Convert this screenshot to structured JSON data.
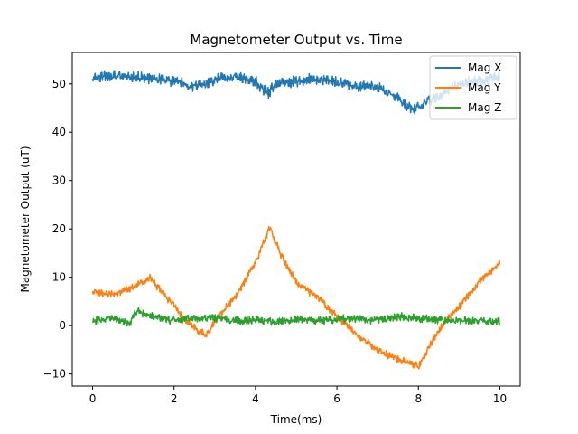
{
  "chart_data": {
    "type": "line",
    "title": "Magnetometer Output vs. Time",
    "xlabel": "Time(ms)",
    "ylabel": "Magnetometer Output (uT)",
    "xlim": [
      -0.5,
      10.5
    ],
    "ylim": [
      -12.5,
      56.5
    ],
    "xticks": [
      0,
      2,
      4,
      6,
      8,
      10
    ],
    "yticks": [
      -10,
      0,
      10,
      20,
      30,
      40,
      50
    ],
    "grid": false,
    "legend_position": "top-right",
    "series": [
      {
        "name": "Mag X",
        "color": "#1f77b4",
        "x": [
          0,
          0.5,
          1,
          1.5,
          2,
          2.5,
          2.8,
          3,
          3.5,
          4,
          4.3,
          4.5,
          5,
          5.5,
          6,
          6.5,
          7,
          7.5,
          7.9,
          8,
          8.5,
          9,
          9.5,
          10
        ],
        "y": [
          51.5,
          51.5,
          51.5,
          51,
          50.5,
          49.5,
          50,
          51,
          51.5,
          50.5,
          48,
          50,
          50.5,
          51,
          50.5,
          49.5,
          49.5,
          47,
          44.5,
          45.5,
          47.5,
          50,
          50.5,
          51.5
        ],
        "noise": 1.3
      },
      {
        "name": "Mag Y",
        "color": "#ff7f0e",
        "x": [
          0,
          0.5,
          1,
          1.4,
          1.5,
          2,
          2.3,
          2.6,
          2.8,
          3,
          3.5,
          4,
          4.35,
          4.6,
          5,
          5.5,
          6,
          6.5,
          7,
          7.5,
          8,
          8.5,
          9,
          9.5,
          10
        ],
        "y": [
          7,
          6.5,
          8,
          10,
          9,
          4,
          1,
          -1,
          -2,
          1,
          6,
          13,
          20.5,
          15,
          9,
          6,
          2,
          -2,
          -5,
          -7,
          -8.5,
          -1,
          4,
          9,
          13
        ],
        "noise": 0.9
      },
      {
        "name": "Mag Z",
        "color": "#2ca02c",
        "x": [
          0,
          0.5,
          0.9,
          1.1,
          1.4,
          1.7,
          2,
          2.5,
          3,
          3.5,
          4,
          4.5,
          5,
          5.5,
          6,
          6.5,
          7,
          7.5,
          8,
          8.5,
          9,
          9.5,
          10
        ],
        "y": [
          1,
          1.5,
          0.5,
          3,
          2,
          1.5,
          1,
          1.5,
          1.5,
          1,
          1.2,
          0.8,
          1.3,
          1,
          1.2,
          1.5,
          1.2,
          1.8,
          1.5,
          1.2,
          1,
          1,
          0.8
        ],
        "noise": 1.0
      }
    ]
  }
}
